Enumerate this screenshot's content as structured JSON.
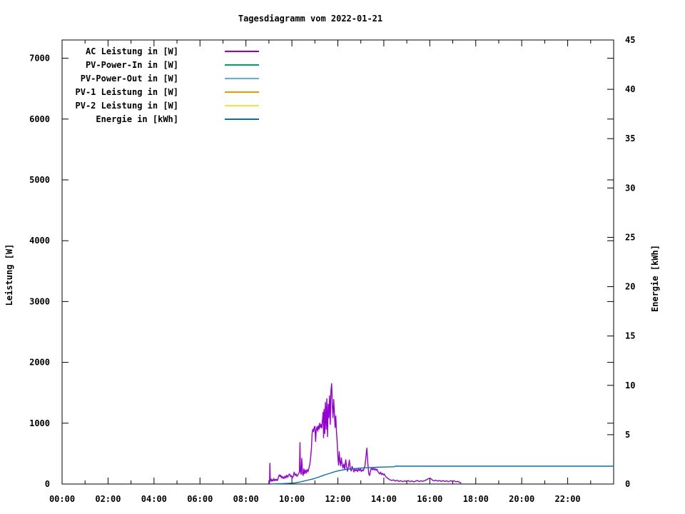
{
  "title": "Tagesdiagramm vom 2022-01-21",
  "axes": {
    "x": {
      "tick_labels": [
        "00:00",
        "02:00",
        "04:00",
        "06:00",
        "08:00",
        "10:00",
        "12:00",
        "14:00",
        "16:00",
        "18:00",
        "20:00",
        "22:00"
      ],
      "major_step_hours": 2,
      "minor_step_hours": 1
    },
    "y_left": {
      "label": "Leistung [W]",
      "tick_labels": [
        "0",
        "1000",
        "2000",
        "3000",
        "4000",
        "5000",
        "6000",
        "7000"
      ],
      "tick_step": 1000
    },
    "y_right": {
      "label": "Energie [kWh]",
      "tick_labels": [
        "0",
        "5",
        "10",
        "15",
        "20",
        "25",
        "30",
        "35",
        "40",
        "45"
      ],
      "tick_step": 5
    }
  },
  "legend": [
    {
      "label": "AC Leistung in [W]",
      "color": "#9400D3"
    },
    {
      "label": "PV-Power-In in [W]",
      "color": "#009E73"
    },
    {
      "label": "PV-Power-Out in [W]",
      "color": "#56B4E9"
    },
    {
      "label": "PV-1 Leistung in [W]",
      "color": "#E69F00"
    },
    {
      "label": "PV-2 Leistung in [W]",
      "color": "#F0E442"
    },
    {
      "label": "Energie in [kWh]",
      "color": "#0072B2"
    }
  ],
  "chart_data": {
    "type": "line",
    "title": "Tagesdiagramm vom 2022-01-21",
    "xlim_hours": [
      0,
      24
    ],
    "ylim_left_W": [
      0,
      7300
    ],
    "ylim_right_kWh": [
      0,
      45
    ],
    "grid": false,
    "legend_position": "top-left-inside",
    "series": [
      {
        "name": "AC Leistung in [W]",
        "color": "#9400D3",
        "axis": "left",
        "points": [
          [
            9.03,
            10
          ],
          [
            9.04,
            340
          ],
          [
            9.06,
            50
          ],
          [
            9.09,
            85
          ],
          [
            9.12,
            45
          ],
          [
            9.15,
            70
          ],
          [
            9.18,
            50
          ],
          [
            9.21,
            90
          ],
          [
            9.24,
            55
          ],
          [
            9.27,
            75
          ],
          [
            9.3,
            60
          ],
          [
            9.33,
            80
          ],
          [
            9.36,
            55
          ],
          [
            9.39,
            75
          ],
          [
            9.42,
            120
          ],
          [
            9.45,
            150
          ],
          [
            9.48,
            125
          ],
          [
            9.51,
            145
          ],
          [
            9.54,
            105
          ],
          [
            9.57,
            125
          ],
          [
            9.6,
            95
          ],
          [
            9.63,
            115
          ],
          [
            9.66,
            90
          ],
          [
            9.7,
            130
          ],
          [
            9.74,
            100
          ],
          [
            9.78,
            145
          ],
          [
            9.82,
            110
          ],
          [
            9.86,
            150
          ],
          [
            9.9,
            165
          ],
          [
            9.94,
            120
          ],
          [
            9.98,
            140
          ],
          [
            10.02,
            100
          ],
          [
            10.06,
            130
          ],
          [
            10.1,
            195
          ],
          [
            10.14,
            140
          ],
          [
            10.18,
            165
          ],
          [
            10.22,
            125
          ],
          [
            10.26,
            150
          ],
          [
            10.3,
            175
          ],
          [
            10.33,
            200
          ],
          [
            10.35,
            680
          ],
          [
            10.37,
            220
          ],
          [
            10.4,
            160
          ],
          [
            10.43,
            420
          ],
          [
            10.46,
            180
          ],
          [
            10.49,
            140
          ],
          [
            10.52,
            250
          ],
          [
            10.55,
            170
          ],
          [
            10.58,
            230
          ],
          [
            10.62,
            180
          ],
          [
            10.66,
            240
          ],
          [
            10.7,
            200
          ],
          [
            10.74,
            260
          ],
          [
            10.78,
            320
          ],
          [
            10.82,
            450
          ],
          [
            10.85,
            600
          ],
          [
            10.88,
            830
          ],
          [
            10.91,
            900
          ],
          [
            10.94,
            860
          ],
          [
            10.97,
            930
          ],
          [
            11.0,
            950
          ],
          [
            11.03,
            700
          ],
          [
            11.06,
            890
          ],
          [
            11.09,
            940
          ],
          [
            11.12,
            870
          ],
          [
            11.15,
            960
          ],
          [
            11.18,
            900
          ],
          [
            11.21,
            1000
          ],
          [
            11.24,
            930
          ],
          [
            11.27,
            980
          ],
          [
            11.3,
            920
          ],
          [
            11.33,
            1050
          ],
          [
            11.36,
            1180
          ],
          [
            11.38,
            760
          ],
          [
            11.4,
            1230
          ],
          [
            11.43,
            830
          ],
          [
            11.46,
            1340
          ],
          [
            11.49,
            900
          ],
          [
            11.52,
            1400
          ],
          [
            11.55,
            780
          ],
          [
            11.58,
            1310
          ],
          [
            11.61,
            1090
          ],
          [
            11.64,
            1450
          ],
          [
            11.67,
            980
          ],
          [
            11.7,
            1530
          ],
          [
            11.73,
            1650
          ],
          [
            11.76,
            1280
          ],
          [
            11.79,
            1090
          ],
          [
            11.82,
            1390
          ],
          [
            11.85,
            1150
          ],
          [
            11.88,
            930
          ],
          [
            11.91,
            1120
          ],
          [
            11.94,
            850
          ],
          [
            11.97,
            690
          ],
          [
            12.0,
            460
          ],
          [
            12.03,
            310
          ],
          [
            12.06,
            530
          ],
          [
            12.09,
            360
          ],
          [
            12.12,
            300
          ],
          [
            12.15,
            430
          ],
          [
            12.18,
            340
          ],
          [
            12.22,
            260
          ],
          [
            12.26,
            330
          ],
          [
            12.3,
            240
          ],
          [
            12.34,
            400
          ],
          [
            12.38,
            290
          ],
          [
            12.42,
            210
          ],
          [
            12.46,
            280
          ],
          [
            12.5,
            395
          ],
          [
            12.54,
            250
          ],
          [
            12.58,
            215
          ],
          [
            12.62,
            290
          ],
          [
            12.66,
            240
          ],
          [
            12.7,
            200
          ],
          [
            12.74,
            250
          ],
          [
            12.78,
            215
          ],
          [
            12.82,
            240
          ],
          [
            12.86,
            205
          ],
          [
            12.9,
            255
          ],
          [
            12.94,
            220
          ],
          [
            12.98,
            245
          ],
          [
            13.02,
            205
          ],
          [
            13.06,
            235
          ],
          [
            13.1,
            215
          ],
          [
            13.14,
            250
          ],
          [
            13.18,
            300
          ],
          [
            13.22,
            440
          ],
          [
            13.26,
            590
          ],
          [
            13.3,
            360
          ],
          [
            13.34,
            170
          ],
          [
            13.38,
            140
          ],
          [
            13.42,
            215
          ],
          [
            13.46,
            265
          ],
          [
            13.5,
            235
          ],
          [
            13.54,
            260
          ],
          [
            13.58,
            230
          ],
          [
            13.62,
            255
          ],
          [
            13.66,
            225
          ],
          [
            13.7,
            245
          ],
          [
            13.74,
            205
          ],
          [
            13.78,
            185
          ],
          [
            13.82,
            165
          ],
          [
            13.86,
            195
          ],
          [
            13.9,
            155
          ],
          [
            13.94,
            175
          ],
          [
            13.98,
            150
          ],
          [
            14.02,
            165
          ],
          [
            14.06,
            135
          ],
          [
            14.1,
            115
          ],
          [
            14.18,
            90
          ],
          [
            14.26,
            70
          ],
          [
            14.34,
            58
          ],
          [
            14.42,
            68
          ],
          [
            14.5,
            48
          ],
          [
            14.58,
            62
          ],
          [
            14.66,
            42
          ],
          [
            14.74,
            55
          ],
          [
            14.82,
            38
          ],
          [
            14.9,
            52
          ],
          [
            14.98,
            42
          ],
          [
            15.06,
            58
          ],
          [
            15.14,
            38
          ],
          [
            15.22,
            52
          ],
          [
            15.3,
            35
          ],
          [
            15.38,
            48
          ],
          [
            15.46,
            58
          ],
          [
            15.54,
            42
          ],
          [
            15.62,
            52
          ],
          [
            15.7,
            45
          ],
          [
            15.78,
            55
          ],
          [
            15.86,
            70
          ],
          [
            15.94,
            88
          ],
          [
            16.02,
            95
          ],
          [
            16.1,
            68
          ],
          [
            16.18,
            52
          ],
          [
            16.26,
            62
          ],
          [
            16.34,
            48
          ],
          [
            16.42,
            58
          ],
          [
            16.5,
            44
          ],
          [
            16.58,
            56
          ],
          [
            16.66,
            42
          ],
          [
            16.74,
            52
          ],
          [
            16.82,
            38
          ],
          [
            16.9,
            55
          ],
          [
            16.98,
            45
          ],
          [
            17.06,
            52
          ],
          [
            17.14,
            38
          ],
          [
            17.22,
            44
          ],
          [
            17.3,
            30
          ],
          [
            17.35,
            15
          ]
        ]
      },
      {
        "name": "PV-Power-In in [W]",
        "color": "#009E73",
        "axis": "left",
        "points": []
      },
      {
        "name": "PV-Power-Out in [W]",
        "color": "#56B4E9",
        "axis": "left",
        "points": []
      },
      {
        "name": "PV-1 Leistung in [W]",
        "color": "#E69F00",
        "axis": "left",
        "points": []
      },
      {
        "name": "PV-2 Leistung in [W]",
        "color": "#F0E442",
        "axis": "left",
        "points": []
      },
      {
        "name": "Energie in [kWh]",
        "color": "#0072B2",
        "axis": "right",
        "points": [
          [
            9.05,
            0.0
          ],
          [
            9.3,
            0.02
          ],
          [
            9.6,
            0.04
          ],
          [
            9.9,
            0.07
          ],
          [
            10.1,
            0.1
          ],
          [
            10.3,
            0.18
          ],
          [
            10.5,
            0.28
          ],
          [
            10.7,
            0.4
          ],
          [
            10.9,
            0.5
          ],
          [
            11.1,
            0.65
          ],
          [
            11.3,
            0.82
          ],
          [
            11.5,
            0.98
          ],
          [
            11.7,
            1.12
          ],
          [
            11.9,
            1.27
          ],
          [
            12.1,
            1.38
          ],
          [
            12.3,
            1.46
          ],
          [
            12.5,
            1.52
          ],
          [
            12.7,
            1.56
          ],
          [
            12.9,
            1.6
          ],
          [
            13.1,
            1.63
          ],
          [
            13.3,
            1.66
          ],
          [
            13.5,
            1.68
          ],
          [
            13.7,
            1.7
          ],
          [
            14.0,
            1.72
          ],
          [
            14.3,
            1.74
          ],
          [
            14.45,
            1.75
          ],
          [
            14.5,
            1.81
          ],
          [
            15.0,
            1.81
          ],
          [
            18.0,
            1.81
          ],
          [
            21.0,
            1.81
          ],
          [
            24.0,
            1.81
          ]
        ]
      }
    ]
  }
}
